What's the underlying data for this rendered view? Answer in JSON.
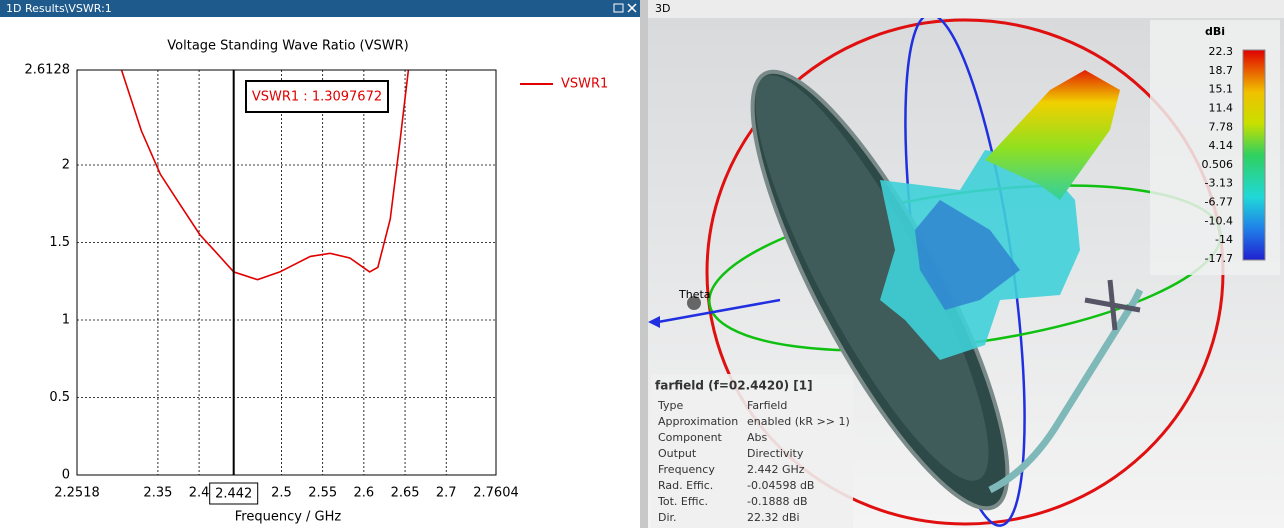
{
  "left_panel": {
    "title": "1D Results\\VSWR:1"
  },
  "chart_data": {
    "type": "line",
    "title": "Voltage Standing Wave Ratio (VSWR)",
    "x_label": "Frequency / GHz",
    "x": [
      2.306,
      2.33,
      2.353,
      2.375,
      2.401,
      2.42,
      2.442,
      2.471,
      2.498,
      2.535,
      2.559,
      2.583,
      2.607,
      2.617,
      2.632,
      2.644,
      2.654
    ],
    "series": [
      {
        "name": "VSWR1",
        "color": "#e00000",
        "values": [
          2.61,
          2.22,
          1.94,
          1.76,
          1.55,
          1.44,
          1.31,
          1.26,
          1.31,
          1.41,
          1.43,
          1.4,
          1.31,
          1.34,
          1.65,
          2.16,
          2.61
        ]
      }
    ],
    "xlim": [
      2.2518,
      2.7604
    ],
    "xticks": [
      2.2518,
      2.35,
      2.4,
      2.5,
      2.55,
      2.6,
      2.65,
      2.7,
      2.7604
    ],
    "ylim": [
      0,
      2.6128
    ],
    "yticks": [
      0,
      0.5,
      1,
      1.5,
      2,
      2.6128
    ],
    "grid": true,
    "legend": "right",
    "marker": {
      "x": 2.442,
      "annotation": "VSWR1 : 1.3097672"
    }
  },
  "right_panel": {
    "title": "3D",
    "axis_label": "Theta",
    "colorbar": {
      "title": "dBi",
      "labels": [
        "22.3",
        "18.7",
        "15.1",
        "11.4",
        "7.78",
        "4.14",
        "0.506",
        "-3.13",
        "-6.77",
        "-10.4",
        "-14",
        "-17.7"
      ]
    },
    "info": {
      "title": "farfield (f=02.4420) [1]",
      "rows": [
        [
          "Type",
          "Farfield"
        ],
        [
          "Approximation",
          "enabled (kR >> 1)"
        ],
        [
          "Component",
          "Abs"
        ],
        [
          "Output",
          "Directivity"
        ],
        [
          "Frequency",
          "2.442 GHz"
        ],
        [
          "Rad. Effic.",
          "-0.04598 dB"
        ],
        [
          "Tot. Effic.",
          "-0.1888 dB"
        ],
        [
          "Dir.",
          "22.32 dBi"
        ]
      ]
    }
  }
}
